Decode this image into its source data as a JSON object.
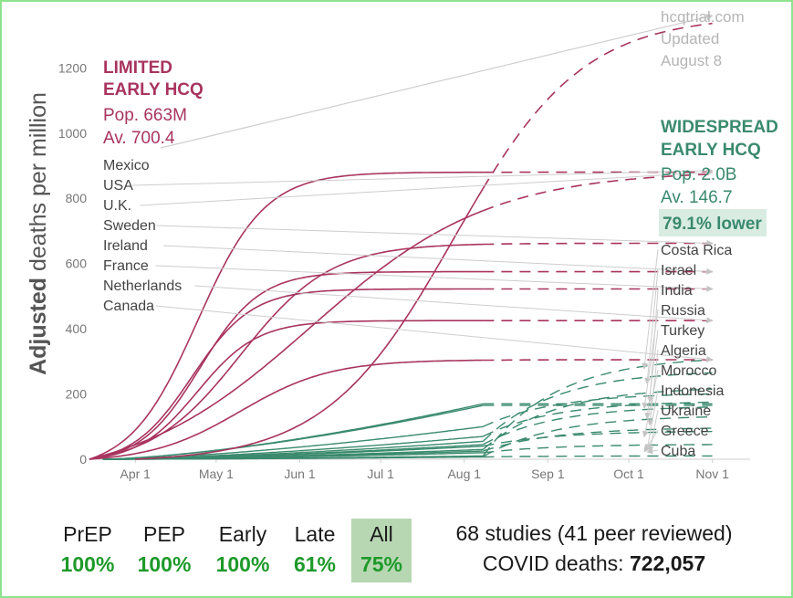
{
  "chart_data": {
    "type": "line",
    "ylabel_bold": "Adjusted",
    "ylabel_rest": " deaths per million",
    "xlim": [
      "2020-03-15",
      "2020-11-15"
    ],
    "ylim": [
      0,
      1380
    ],
    "yticks": [
      0,
      200,
      400,
      600,
      800,
      1000,
      1200
    ],
    "xticks": [
      {
        "date": "2020-04-01",
        "label": "Apr 1"
      },
      {
        "date": "2020-05-01",
        "label": "May 1"
      },
      {
        "date": "2020-06-01",
        "label": "Jun 1"
      },
      {
        "date": "2020-07-01",
        "label": "Jul 1"
      },
      {
        "date": "2020-08-01",
        "label": "Aug 1"
      },
      {
        "date": "2020-09-01",
        "label": "Sep 1"
      },
      {
        "date": "2020-10-01",
        "label": "Oct 1"
      },
      {
        "date": "2020-11-01",
        "label": "Nov 1"
      }
    ],
    "update_date": "2020-08-08",
    "end_date": "2020-11-01",
    "limited_group": {
      "title_line1": "LIMITED",
      "title_line2": "EARLY HCQ",
      "pop": "Pop. 663M",
      "avg": "Av. 700.4",
      "color": "#a8345f",
      "countries": [
        {
          "name": "Mexico",
          "type": "late",
          "start": "2020-04-01",
          "mid": "2020-07-28",
          "k": 0.042,
          "final": 1360
        },
        {
          "name": "USA",
          "type": "late",
          "start": "2020-03-15",
          "mid": "2020-06-05",
          "k": 0.03,
          "final": 885
        },
        {
          "name": "U.K.",
          "type": "early",
          "start": "2020-03-15",
          "mid": "2020-04-24",
          "k": 0.08,
          "final": 880
        },
        {
          "name": "Sweden",
          "type": "early",
          "start": "2020-03-15",
          "mid": "2020-05-10",
          "k": 0.06,
          "final": 662
        },
        {
          "name": "Ireland",
          "type": "early",
          "start": "2020-03-15",
          "mid": "2020-04-25",
          "k": 0.09,
          "final": 575
        },
        {
          "name": "France",
          "type": "early",
          "start": "2020-03-15",
          "mid": "2020-04-22",
          "k": 0.09,
          "final": 522
        },
        {
          "name": "Netherlands",
          "type": "early",
          "start": "2020-03-15",
          "mid": "2020-04-24",
          "k": 0.09,
          "final": 425
        },
        {
          "name": "Canada",
          "type": "early",
          "start": "2020-03-15",
          "mid": "2020-05-10",
          "k": 0.06,
          "final": 305
        }
      ]
    },
    "widespread_group": {
      "title_line1": "WIDESPREAD",
      "title_line2": "EARLY HCQ",
      "pop": "Pop. 2.0B",
      "avg": "Av. 146.7",
      "lower": "79.1% lower",
      "color": "#3a8a6e",
      "countries": [
        {
          "name": "Costa Rica",
          "v_aug": 10,
          "final": 305
        },
        {
          "name": "Israel",
          "v_aug": 55,
          "final": 265
        },
        {
          "name": "India",
          "v_aug": 30,
          "final": 215
        },
        {
          "name": "Russia",
          "v_aug": 100,
          "final": 200
        },
        {
          "name": "Turkey",
          "v_aug": 70,
          "final": 175
        },
        {
          "name": "Algeria",
          "v_aug": 45,
          "final": 160
        },
        {
          "name": "Morocco",
          "v_aug": 8,
          "final": 130
        },
        {
          "name": "Indonesia",
          "v_aug": 25,
          "final": 95
        },
        {
          "name": "Ukraine",
          "v_aug": 40,
          "final": 85
        },
        {
          "name": "Greece",
          "v_aug": 20,
          "final": 45
        },
        {
          "name": "Cuba",
          "v_aug": 7,
          "final": 10
        }
      ],
      "extra_curves": [
        {
          "v_aug": 170,
          "final": 170
        },
        {
          "v_aug": 165,
          "final": 165
        }
      ]
    },
    "watermark": [
      "hcqtrial.com",
      "Updated",
      "August 8"
    ]
  },
  "stats": [
    {
      "label": "PrEP",
      "value": "100%",
      "highlight": false
    },
    {
      "label": "PEP",
      "value": "100%",
      "highlight": false
    },
    {
      "label": "Early",
      "value": "100%",
      "highlight": false
    },
    {
      "label": "Late",
      "value": "61%",
      "highlight": false
    },
    {
      "label": "All",
      "value": "75%",
      "highlight": true
    }
  ],
  "summary": {
    "studies": "68 studies (41 peer reviewed)",
    "deaths_label": "COVID deaths: ",
    "deaths_value": "722,057"
  },
  "colors": {
    "limited": "#a8345f",
    "widespread": "#3a8a6e",
    "stat_value": "#1e9a2a",
    "stat_highlight_bg": "#b7d7b2",
    "frame": "#8fe38f"
  }
}
